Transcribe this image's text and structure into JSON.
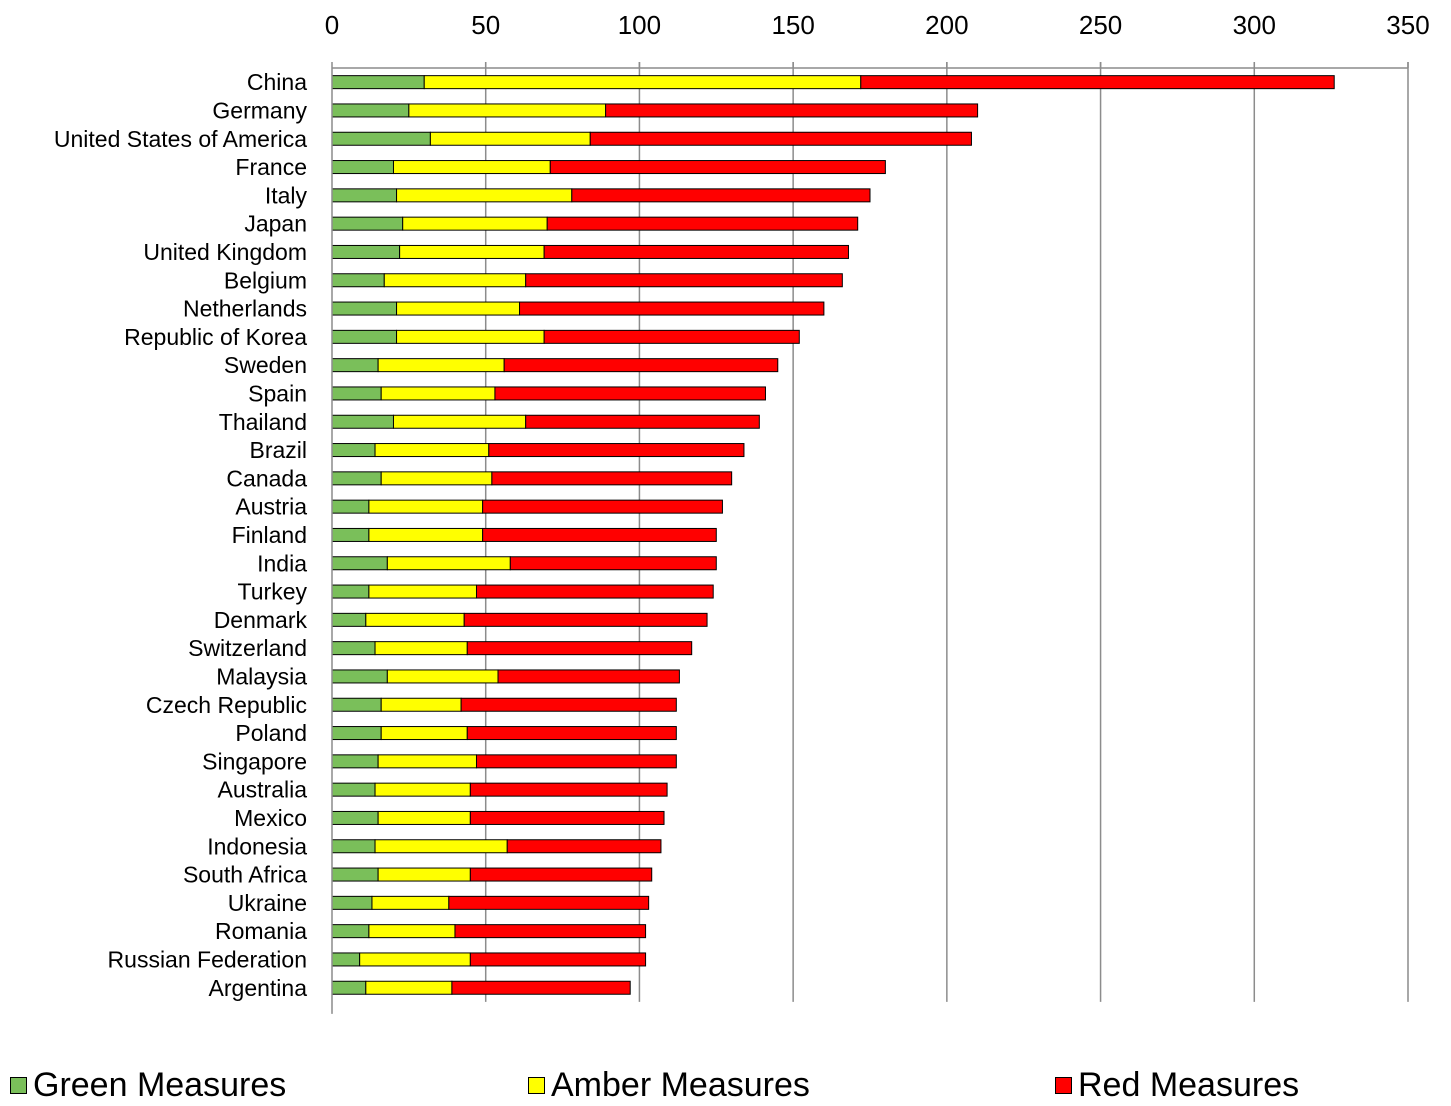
{
  "chart_data": {
    "type": "bar",
    "orientation": "horizontal",
    "stacked": true,
    "title": "",
    "xlabel": "",
    "ylabel": "",
    "xlim": [
      0,
      350
    ],
    "x_ticks": [
      "0",
      "50",
      "100",
      "150",
      "200",
      "250",
      "300",
      "350"
    ],
    "x_axis_position": "top",
    "grid": "vertical",
    "legend_position": "bottom",
    "categories": [
      "China",
      "Germany",
      "United States of America",
      "France",
      "Italy",
      "Japan",
      "United Kingdom ",
      "Belgium",
      "Netherlands",
      "Republic of Korea",
      "Sweden",
      "Spain",
      "Thailand",
      "Brazil",
      "Canada",
      "Austria",
      "Finland",
      "India",
      "Turkey",
      "Denmark",
      "Switzerland",
      "Malaysia",
      "Czech Republic",
      "Poland",
      "Singapore",
      "Australia",
      "Mexico",
      "Indonesia",
      "South Africa",
      "Ukraine",
      "Romania",
      "Russian Federation",
      "Argentina"
    ],
    "series": [
      {
        "name": "Green Measures",
        "color": "#7ABF5A",
        "values": [
          30,
          25,
          32,
          20,
          21,
          23,
          22,
          17,
          21,
          21,
          15,
          16,
          20,
          14,
          16,
          12,
          12,
          18,
          12,
          11,
          14,
          18,
          16,
          16,
          15,
          14,
          15,
          14,
          15,
          13,
          12,
          9,
          11
        ]
      },
      {
        "name": "Amber Measures",
        "color": "#FFFF00",
        "values": [
          142,
          64,
          52,
          51,
          57,
          47,
          47,
          46,
          40,
          48,
          41,
          37,
          43,
          37,
          36,
          37,
          37,
          40,
          35,
          32,
          30,
          36,
          26,
          28,
          32,
          31,
          30,
          43,
          30,
          25,
          28,
          36,
          28
        ]
      },
      {
        "name": "Red Measures",
        "color": "#FF0000",
        "values": [
          154,
          121,
          124,
          109,
          97,
          101,
          99,
          103,
          99,
          83,
          89,
          88,
          76,
          83,
          78,
          78,
          76,
          67,
          77,
          79,
          73,
          59,
          70,
          68,
          65,
          64,
          63,
          50,
          59,
          65,
          62,
          57,
          58
        ]
      }
    ]
  }
}
